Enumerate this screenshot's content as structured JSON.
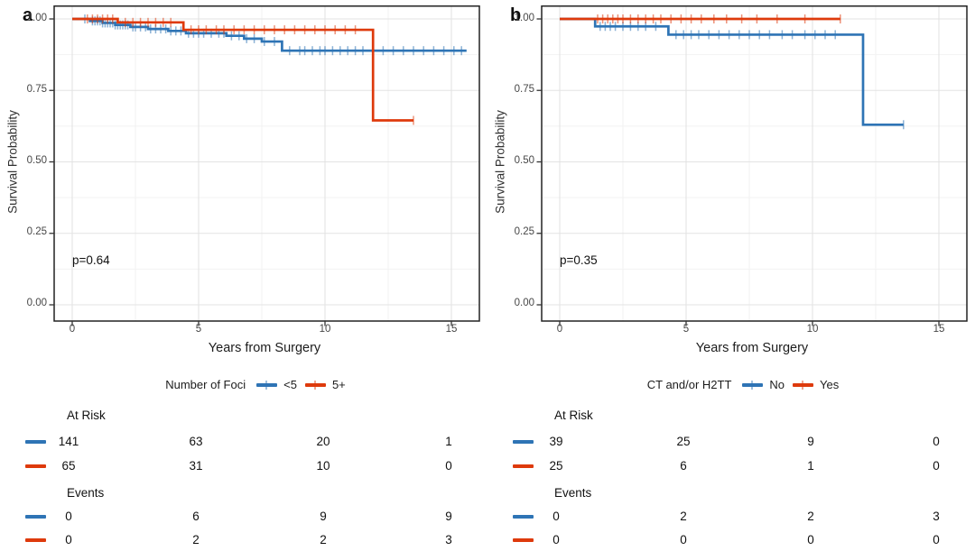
{
  "figure": {
    "ylabel": "Survival Probability",
    "xlabel": "Years from Surgery"
  },
  "chart_data": [
    {
      "type": "line",
      "subtype": "kaplan-meier-step",
      "panel_label": "a",
      "p_value": "p=0.64",
      "xlabel": "Years from Surgery",
      "ylabel": "Survival Probability",
      "xlim": [
        -0.7,
        16.1
      ],
      "ylim": [
        0.0,
        1.0
      ],
      "grid": "on",
      "legend_position": "bottom",
      "x_ticks": [
        0,
        5,
        10,
        15
      ],
      "x_tick_labels": [
        "0",
        "5",
        "10",
        "15"
      ],
      "y_ticks": [
        1.0,
        0.75,
        0.5,
        0.25,
        0.0
      ],
      "y_tick_labels": [
        "1.00",
        "0.75",
        "0.50",
        "0.25",
        "0.00"
      ],
      "legend": {
        "title": "Number of Foci"
      },
      "series": [
        {
          "name": "<5",
          "color": "#2E74B5",
          "steps_x": [
            0,
            0.7,
            1.2,
            1.7,
            2.3,
            3.0,
            3.8,
            4.5,
            6.1,
            6.8,
            7.5,
            8.3
          ],
          "steps_y": [
            1.0,
            0.993,
            0.986,
            0.979,
            0.972,
            0.965,
            0.958,
            0.95,
            0.941,
            0.931,
            0.921,
            0.889
          ],
          "end_x": 15.6,
          "censor_x": [
            0.5,
            0.8,
            0.9,
            1.0,
            1.1,
            1.2,
            1.3,
            1.4,
            1.5,
            1.6,
            1.7,
            1.8,
            1.9,
            2.0,
            2.1,
            2.2,
            2.4,
            2.5,
            2.7,
            2.9,
            3.1,
            3.3,
            3.5,
            3.7,
            3.9,
            4.1,
            4.3,
            4.6,
            4.8,
            5.0,
            5.2,
            5.5,
            5.8,
            6.0,
            6.3,
            6.6,
            6.9,
            7.2,
            7.6,
            8.0,
            8.6,
            9.0,
            9.2,
            9.5,
            9.8,
            10.0,
            10.3,
            10.6,
            10.9,
            11.2,
            11.5,
            11.9,
            12.3,
            12.7,
            13.1,
            13.5,
            13.9,
            14.3,
            14.7,
            15.1,
            15.4
          ]
        },
        {
          "name": "5+",
          "color": "#DE3A0C",
          "steps_x": [
            0,
            1.8,
            4.4,
            11.9
          ],
          "steps_y": [
            1.0,
            0.988,
            0.962,
            0.645
          ],
          "end_x": 13.5,
          "censor_x": [
            0.6,
            0.8,
            1.0,
            1.2,
            1.4,
            1.6,
            2.1,
            2.4,
            2.7,
            3.0,
            3.3,
            3.6,
            3.9,
            4.7,
            5.0,
            5.3,
            5.7,
            6.0,
            6.4,
            6.8,
            7.2,
            7.6,
            8.0,
            8.4,
            8.8,
            9.2,
            9.6,
            10.0,
            10.4,
            10.8,
            11.2,
            13.5
          ]
        }
      ],
      "risk_table": {
        "at_risk_label": "At Risk",
        "events_label": "Events",
        "time_points": [
          0,
          5,
          10,
          15
        ],
        "at_risk": [
          [
            "141",
            "63",
            "20",
            "1"
          ],
          [
            "65",
            "31",
            "10",
            "0"
          ]
        ],
        "events": [
          [
            "0",
            "6",
            "9",
            "9"
          ],
          [
            "0",
            "2",
            "2",
            "3"
          ]
        ]
      }
    },
    {
      "type": "line",
      "subtype": "kaplan-meier-step",
      "panel_label": "b",
      "p_value": "p=0.35",
      "xlabel": "Years from Surgery",
      "ylabel": "Survival Probability",
      "xlim": [
        -0.7,
        16.1
      ],
      "ylim": [
        0.0,
        1.0
      ],
      "grid": "on",
      "legend_position": "bottom",
      "x_ticks": [
        0,
        5,
        10,
        15
      ],
      "x_tick_labels": [
        "0",
        "5",
        "10",
        "15"
      ],
      "y_ticks": [
        1.0,
        0.75,
        0.5,
        0.25,
        0.0
      ],
      "y_tick_labels": [
        "1.00",
        "0.75",
        "0.50",
        "0.25",
        "0.00"
      ],
      "legend": {
        "title": "CT and/or H2TT"
      },
      "series": [
        {
          "name": "No",
          "color": "#2E74B5",
          "steps_x": [
            0,
            1.4,
            4.3,
            12.0
          ],
          "steps_y": [
            1.0,
            0.974,
            0.945,
            0.63
          ],
          "end_x": 13.6,
          "censor_x": [
            1.6,
            1.8,
            2.0,
            2.2,
            2.5,
            2.8,
            3.1,
            3.4,
            3.8,
            4.6,
            4.9,
            5.2,
            5.5,
            5.9,
            6.3,
            6.7,
            7.1,
            7.5,
            7.9,
            8.3,
            8.8,
            9.2,
            9.7,
            10.1,
            10.5,
            10.9,
            13.6
          ]
        },
        {
          "name": "Yes",
          "color": "#DE3A0C",
          "steps_x": [
            0
          ],
          "steps_y": [
            1.0
          ],
          "end_x": 11.1,
          "censor_x": [
            1.5,
            1.7,
            1.9,
            2.1,
            2.3,
            2.5,
            2.8,
            3.1,
            3.4,
            3.7,
            4.0,
            4.4,
            4.8,
            5.2,
            5.6,
            6.1,
            6.6,
            7.2,
            7.8,
            8.6,
            9.7,
            11.1
          ]
        }
      ],
      "risk_table": {
        "at_risk_label": "At Risk",
        "events_label": "Events",
        "time_points": [
          0,
          5,
          10,
          15
        ],
        "at_risk": [
          [
            "39",
            "25",
            "9",
            "0"
          ],
          [
            "25",
            "6",
            "1",
            "0"
          ]
        ],
        "events": [
          [
            "0",
            "2",
            "2",
            "3"
          ],
          [
            "0",
            "0",
            "0",
            "0"
          ]
        ]
      }
    }
  ]
}
